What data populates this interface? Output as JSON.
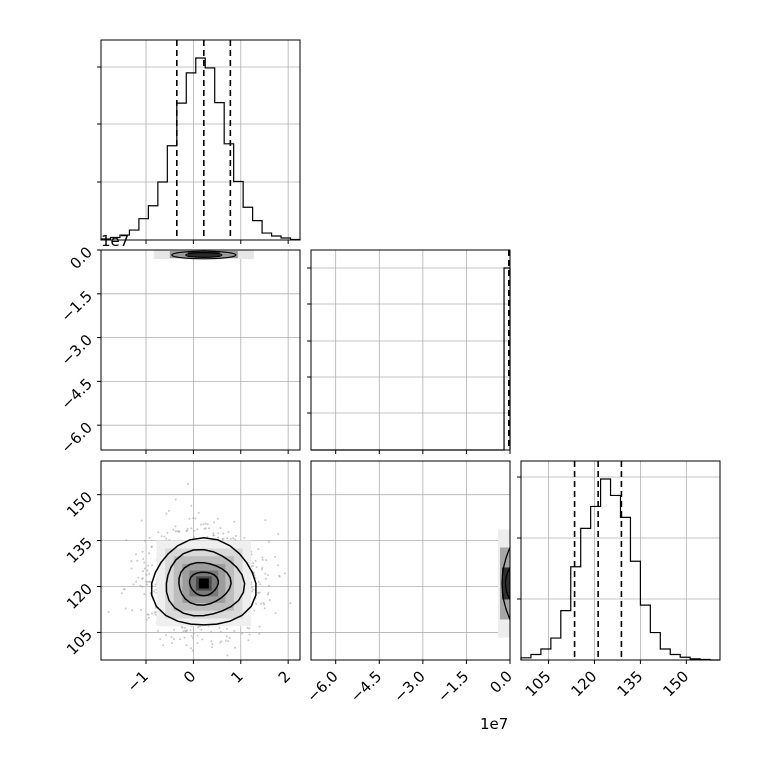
{
  "chart_data": {
    "type": "corner",
    "grid": true,
    "offset_text": "1e7",
    "parameters": [
      {
        "id": "p0",
        "range": [
          -1.95,
          2.25
        ]
      },
      {
        "id": "p1",
        "range": [
          -6.85,
          0.0
        ]
      },
      {
        "id": "p2",
        "range": [
          96.0,
          161.0
        ]
      }
    ],
    "axis_ticks": {
      "p0": {
        "values": [
          -1,
          0,
          1,
          2
        ],
        "labels": [
          "−1",
          "0",
          "1",
          "2"
        ]
      },
      "p1_x": {
        "values": [
          -6.0,
          -4.5,
          -3.0,
          -1.5,
          0.0
        ],
        "labels": [
          "−6.0",
          "−4.5",
          "−3.0",
          "−1.5",
          "0.0"
        ]
      },
      "p1_y": {
        "values": [
          0.0,
          -1.5,
          -3.0,
          -4.5,
          -6.0
        ],
        "labels": [
          "0.0",
          "−1.5",
          "−3.0",
          "−4.5",
          "−6.0"
        ]
      },
      "p2": {
        "values": [
          105,
          120,
          135,
          150
        ],
        "labels": [
          "105",
          "120",
          "135",
          "150"
        ]
      }
    },
    "marginals": {
      "p0": {
        "bins": [
          -1.95,
          -1.75,
          -1.55,
          -1.35,
          -1.15,
          -0.95,
          -0.75,
          -0.55,
          -0.35,
          -0.15,
          0.05,
          0.25,
          0.45,
          0.65,
          0.85,
          1.05,
          1.25,
          1.45,
          1.65,
          1.85,
          2.05,
          2.25
        ],
        "counts": [
          2,
          5,
          10,
          20,
          43,
          69,
          117,
          190,
          276,
          337,
          367,
          347,
          277,
          194,
          118,
          66,
          39,
          14,
          8,
          4,
          1
        ],
        "quantiles": [
          -0.35,
          0.22,
          0.78
        ]
      },
      "p1": {
        "bins": [
          -6.85,
          -0.205,
          0.0
        ],
        "counts": [
          0,
          3000
        ],
        "quantiles": [
          -0.005,
          -0.002,
          -0.001
        ]
      },
      "p2": {
        "bins": [
          96,
          99.25,
          102.5,
          105.75,
          109,
          112.25,
          115.5,
          118.75,
          122,
          125.25,
          128.5,
          131.75,
          135,
          138.25,
          141.5,
          144.75,
          148,
          151.25,
          154.5,
          157.75,
          161
        ],
        "counts": [
          4,
          10,
          20,
          40,
          90,
          170,
          240,
          280,
          330,
          300,
          260,
          180,
          100,
          50,
          20,
          10,
          5,
          2,
          1,
          0
        ],
        "quantiles": [
          113.5,
          121.2,
          128.8
        ]
      }
    },
    "joint": {
      "p0_p1": {
        "center": [
          0.22,
          0.0
        ]
      },
      "p0_p2": {
        "center": [
          0.22,
          121.0
        ],
        "sigma": [
          0.55,
          7.7
        ]
      },
      "p1_p2": {
        "center": [
          -0.002,
          121.0
        ]
      }
    }
  }
}
